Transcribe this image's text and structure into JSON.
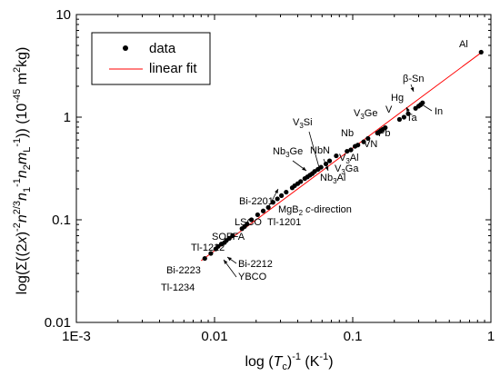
{
  "chart_data": {
    "type": "scatter",
    "x_scale": "log",
    "y_scale": "log",
    "xlim": [
      0.001,
      1
    ],
    "ylim": [
      0.01,
      10
    ],
    "x_tick_labels": [
      "1E-3",
      "0.01",
      "0.1",
      "1"
    ],
    "y_tick_labels": [
      "0.01",
      "0.1",
      "1",
      "10"
    ],
    "xlabel_parts": [
      "log (",
      "T",
      "c",
      ")",
      "-1",
      "  (K",
      "-1",
      ")"
    ],
    "ylabel_parts": [
      "log(Σ((2",
      "x",
      ")",
      "-2",
      "n",
      "2/3",
      "n",
      "1",
      "-1",
      "n",
      "2",
      "m",
      "L",
      "-1",
      "))  (10",
      "-45",
      " m",
      "2",
      "kg)"
    ],
    "legend": {
      "position": "top-left",
      "items": [
        {
          "label": "data",
          "marker": "dot",
          "color": "#000000"
        },
        {
          "label": "linear fit",
          "marker": "line",
          "color": "#ff0000"
        }
      ]
    },
    "colors": {
      "data": "#000000",
      "fit": "#ff0000"
    },
    "fit": {
      "x": [
        0.008,
        0.86
      ],
      "y": [
        0.04,
        4.3
      ]
    },
    "series": [
      {
        "name": "data",
        "x": [
          0.0085,
          0.0094,
          0.0102,
          0.0106,
          0.0112,
          0.0118,
          0.0122,
          0.0128,
          0.0135,
          0.0158,
          0.0165,
          0.0172,
          0.0185,
          0.0205,
          0.0225,
          0.0245,
          0.0265,
          0.0285,
          0.0305,
          0.033,
          0.0365,
          0.038,
          0.04,
          0.042,
          0.045,
          0.047,
          0.049,
          0.051,
          0.053,
          0.056,
          0.059,
          0.064,
          0.068,
          0.076,
          0.091,
          0.097,
          0.104,
          0.109,
          0.12,
          0.129,
          0.151,
          0.156,
          0.16,
          0.165,
          0.172,
          0.218,
          0.235,
          0.252,
          0.285,
          0.3,
          0.31,
          0.32,
          0.85
        ],
        "y": [
          0.042,
          0.047,
          0.052,
          0.055,
          0.058,
          0.06,
          0.063,
          0.066,
          0.07,
          0.082,
          0.086,
          0.091,
          0.1,
          0.112,
          0.122,
          0.132,
          0.148,
          0.16,
          0.172,
          0.186,
          0.205,
          0.215,
          0.225,
          0.236,
          0.252,
          0.262,
          0.272,
          0.282,
          0.296,
          0.31,
          0.325,
          0.35,
          0.375,
          0.42,
          0.465,
          0.48,
          0.52,
          0.535,
          0.575,
          0.62,
          0.7,
          0.72,
          0.74,
          0.76,
          0.79,
          0.95,
          1.0,
          1.08,
          1.22,
          1.28,
          1.32,
          1.38,
          4.3
        ]
      }
    ],
    "annotations": [
      {
        "text": "Al"
      },
      {
        "text": "β-Sn"
      },
      {
        "text": "Hg"
      },
      {
        "text": "In"
      },
      {
        "text": "Ta"
      },
      {
        "text": "V"
      },
      {
        "text": "V3Ge"
      },
      {
        "text": "Pb"
      },
      {
        "text": "Nb"
      },
      {
        "text": "VN"
      },
      {
        "text": "V3Si"
      },
      {
        "text": "NbN"
      },
      {
        "text": "Nb3Ge"
      },
      {
        "text": "V3Al"
      },
      {
        "text": "V3Ga"
      },
      {
        "text": "Nb3Al"
      },
      {
        "text": "Bi-2201"
      },
      {
        "text": "LSCO"
      },
      {
        "text": "MgB2 c-direction"
      },
      {
        "text": "SOFFA"
      },
      {
        "text": "Tl-1201"
      },
      {
        "text": "Tl-1212"
      },
      {
        "text": "Bi-2212"
      },
      {
        "text": "Bi-2223"
      },
      {
        "text": "YBCO"
      },
      {
        "text": "Tl-1234"
      }
    ]
  }
}
